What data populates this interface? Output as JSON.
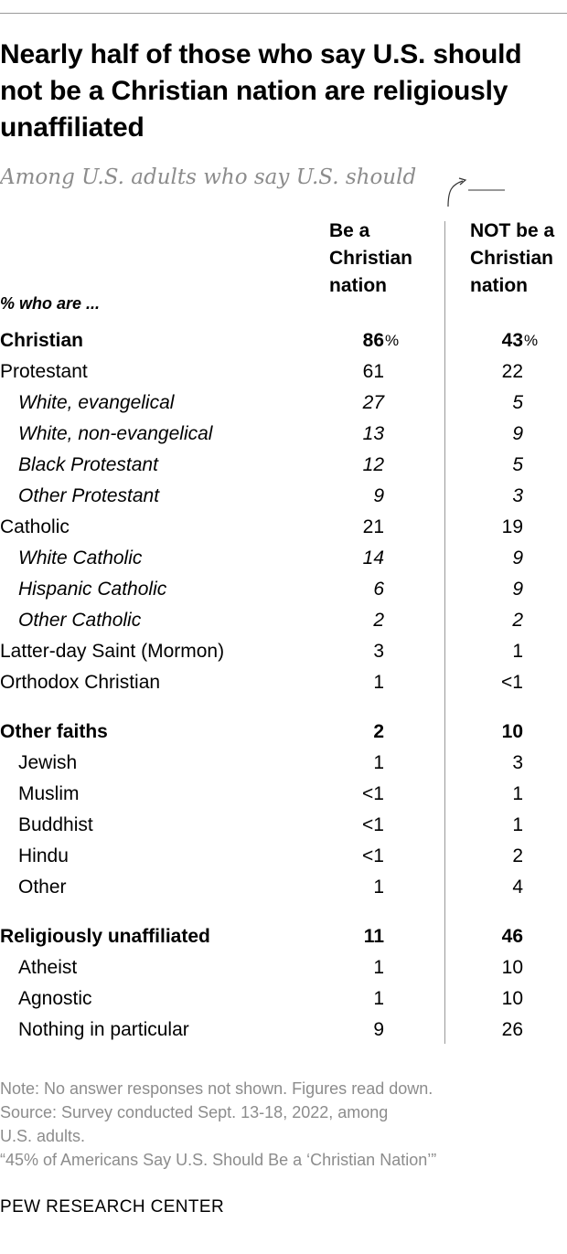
{
  "title": "Nearly half of those who say U.S. should not be a Christian nation are religiously unaffiliated",
  "subtitle": "Among U.S. adults who say U.S. should",
  "row_header": "% who are ...",
  "columns": [
    {
      "lines": [
        "Be a",
        "Christian",
        "nation"
      ]
    },
    {
      "lines": [
        "NOT be a",
        "Christian",
        "nation"
      ]
    }
  ],
  "chart_data": {
    "type": "table",
    "unit": "%",
    "rows": [
      {
        "label": "Christian",
        "be": "86",
        "not": "43",
        "style": "bold",
        "pct": true
      },
      {
        "label": "Protestant",
        "be": "61",
        "not": "22",
        "style": "plain"
      },
      {
        "label": "White, evangelical",
        "be": "27",
        "not": "5",
        "style": "italic"
      },
      {
        "label": "White, non-evangelical",
        "be": "13",
        "not": "9",
        "style": "italic"
      },
      {
        "label": "Black Protestant",
        "be": "12",
        "not": "5",
        "style": "italic"
      },
      {
        "label": "Other Protestant",
        "be": "9",
        "not": "3",
        "style": "italic"
      },
      {
        "label": "Catholic",
        "be": "21",
        "not": "19",
        "style": "plain"
      },
      {
        "label": "White Catholic",
        "be": "14",
        "not": "9",
        "style": "italic"
      },
      {
        "label": "Hispanic Catholic",
        "be": "6",
        "not": "9",
        "style": "italic"
      },
      {
        "label": "Other Catholic",
        "be": "2",
        "not": "2",
        "style": "italic"
      },
      {
        "label": "Latter-day Saint (Mormon)",
        "be": "3",
        "not": "1",
        "style": "plain"
      },
      {
        "label": "Orthodox Christian",
        "be": "1",
        "not": "<1",
        "style": "plain"
      },
      {
        "label": "Other faiths",
        "be": "2",
        "not": "10",
        "style": "bold"
      },
      {
        "label": "Jewish",
        "be": "1",
        "not": "3",
        "style": "indent"
      },
      {
        "label": "Muslim",
        "be": "<1",
        "not": "1",
        "style": "indent"
      },
      {
        "label": "Buddhist",
        "be": "<1",
        "not": "1",
        "style": "indent"
      },
      {
        "label": "Hindu",
        "be": "<1",
        "not": "2",
        "style": "indent"
      },
      {
        "label": "Other",
        "be": "1",
        "not": "4",
        "style": "indent"
      },
      {
        "label": "Religiously unaffiliated",
        "be": "11",
        "not": "46",
        "style": "bold"
      },
      {
        "label": "Atheist",
        "be": "1",
        "not": "10",
        "style": "indent"
      },
      {
        "label": "Agnostic",
        "be": "1",
        "not": "10",
        "style": "indent"
      },
      {
        "label": "Nothing in particular",
        "be": "9",
        "not": "26",
        "style": "indent"
      }
    ]
  },
  "notes": [
    "Note: No answer responses not shown. Figures read down.",
    "Source: Survey conducted Sept. 13-18, 2022, among",
    "U.S. adults.",
    "“45% of Americans Say U.S. Should Be a ‘Christian Nation’”"
  ],
  "brand": "PEW RESEARCH CENTER",
  "colors": {
    "text": "#000000",
    "muted": "#8c8c8c",
    "rule": "#9a9a9a"
  }
}
